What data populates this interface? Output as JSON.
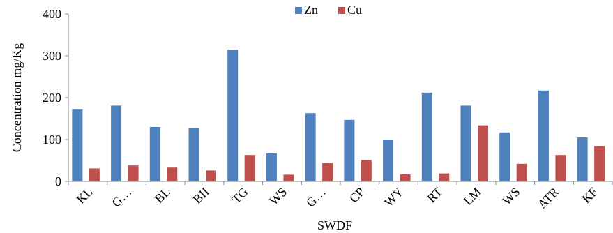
{
  "chart_data": {
    "type": "bar",
    "categories": [
      "KL",
      "G…",
      "BL",
      "BII",
      "TG",
      "WS",
      "G…",
      "CP",
      "WY",
      "RT",
      "LM",
      "WS",
      "ATR",
      "KF"
    ],
    "series": [
      {
        "name": "Zn",
        "color": "#4F81BD",
        "values": [
          173,
          181,
          130,
          127,
          315,
          67,
          163,
          147,
          100,
          212,
          181,
          117,
          217,
          105
        ]
      },
      {
        "name": "Cu",
        "color": "#C0504D",
        "values": [
          31,
          38,
          33,
          26,
          63,
          16,
          44,
          51,
          17,
          19,
          134,
          42,
          63,
          84
        ]
      }
    ],
    "title": "",
    "xlabel": "SWDF",
    "ylabel": "Concentration mg/Kg",
    "ylim": [
      0,
      400
    ],
    "yticks": [
      0,
      100,
      200,
      300,
      400
    ],
    "grid": false,
    "legend": "top-center"
  }
}
